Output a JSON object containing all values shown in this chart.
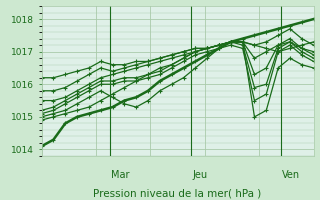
{
  "title": "",
  "xlabel": "Pression niveau de la mer( hPa )",
  "ylabel": "",
  "bg_color": "#cde8d0",
  "plot_bg_color": "#dff0e8",
  "line_color": "#1a6b1a",
  "grid_color": "#aacaaa",
  "ylim": [
    1013.8,
    1018.4
  ],
  "yticks": [
    1014,
    1015,
    1016,
    1017,
    1018
  ],
  "day_labels": [
    "Mar",
    "Jeu",
    "Ven"
  ],
  "day_positions": [
    0.25,
    0.55,
    0.88
  ],
  "series": [
    [
      1014.1,
      1014.3,
      1014.8,
      1015.0,
      1015.1,
      1015.2,
      1015.3,
      1015.5,
      1015.6,
      1015.8,
      1016.1,
      1016.3,
      1016.5,
      1016.7,
      1016.9,
      1017.1,
      1017.3,
      1017.4,
      1017.5,
      1017.6,
      1017.7,
      1017.8,
      1017.9,
      1018.0
    ],
    [
      1014.9,
      1015.0,
      1015.1,
      1015.2,
      1015.3,
      1015.5,
      1015.7,
      1015.9,
      1016.1,
      1016.3,
      1016.5,
      1016.6,
      1016.8,
      1017.0,
      1017.1,
      1017.2,
      1017.3,
      1017.3,
      1017.2,
      1017.1,
      1017.0,
      1017.1,
      1017.2,
      1017.3
    ],
    [
      1015.0,
      1015.1,
      1015.2,
      1015.4,
      1015.6,
      1015.8,
      1015.6,
      1015.4,
      1015.3,
      1015.5,
      1015.8,
      1016.0,
      1016.2,
      1016.5,
      1016.8,
      1017.1,
      1017.3,
      1017.3,
      1015.0,
      1015.2,
      1016.5,
      1016.8,
      1016.6,
      1016.5
    ],
    [
      1015.1,
      1015.2,
      1015.4,
      1015.6,
      1015.8,
      1016.0,
      1016.0,
      1016.1,
      1016.1,
      1016.2,
      1016.3,
      1016.5,
      1016.7,
      1016.9,
      1017.0,
      1017.1,
      1017.2,
      1017.1,
      1015.5,
      1015.7,
      1017.0,
      1017.2,
      1016.9,
      1016.7
    ],
    [
      1015.2,
      1015.3,
      1015.5,
      1015.7,
      1015.9,
      1016.1,
      1016.1,
      1016.2,
      1016.2,
      1016.3,
      1016.4,
      1016.6,
      1016.8,
      1017.0,
      1017.1,
      1017.2,
      1017.3,
      1017.2,
      1015.9,
      1016.0,
      1017.1,
      1017.3,
      1017.0,
      1016.8
    ],
    [
      1015.5,
      1015.5,
      1015.6,
      1015.8,
      1016.0,
      1016.2,
      1016.3,
      1016.4,
      1016.5,
      1016.6,
      1016.7,
      1016.8,
      1016.9,
      1017.0,
      1017.1,
      1017.2,
      1017.3,
      1017.3,
      1016.3,
      1016.5,
      1017.2,
      1017.3,
      1017.1,
      1016.9
    ],
    [
      1015.8,
      1015.8,
      1015.9,
      1016.1,
      1016.3,
      1016.5,
      1016.4,
      1016.5,
      1016.6,
      1016.7,
      1016.8,
      1016.9,
      1017.0,
      1017.1,
      1017.1,
      1017.2,
      1017.3,
      1017.3,
      1016.8,
      1017.0,
      1017.2,
      1017.4,
      1017.1,
      1017.0
    ],
    [
      1016.2,
      1016.2,
      1016.3,
      1016.4,
      1016.5,
      1016.7,
      1016.6,
      1016.6,
      1016.7,
      1016.7,
      1016.8,
      1016.9,
      1017.0,
      1017.1,
      1017.1,
      1017.2,
      1017.3,
      1017.3,
      1017.2,
      1017.3,
      1017.5,
      1017.7,
      1017.4,
      1017.2
    ]
  ]
}
